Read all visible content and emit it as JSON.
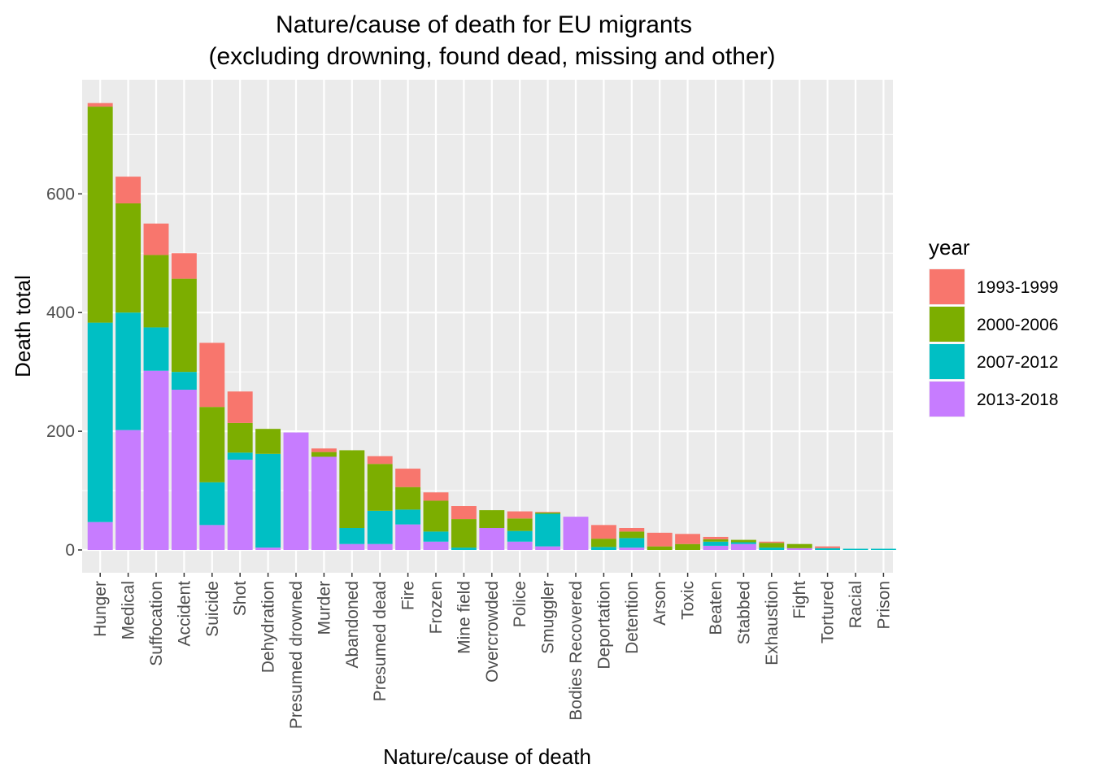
{
  "chart_data": {
    "type": "bar",
    "stacked": true,
    "title_lines": [
      "Nature/cause of death for EU migrants",
      "(excluding drowning, found dead, missing and other)"
    ],
    "xlabel": "Nature/cause of death",
    "ylabel": "Death total",
    "ylim": [
      -38,
      784
    ],
    "yticks": [
      0,
      200,
      400,
      600
    ],
    "grid": true,
    "legend_position": "right",
    "legend_title": "year",
    "categories": [
      "Hunger",
      "Medical",
      "Suffocation",
      "Accident",
      "Suicide",
      "Shot",
      "Dehydration",
      "Presumed drowned",
      "Murder",
      "Abandoned",
      "Presumed dead",
      "Fire",
      "Frozen",
      "Mine field",
      "Overcrowded",
      "Police",
      "Smuggler",
      "Bodies Recovered",
      "Deportation",
      "Detention",
      "Arson",
      "Toxic",
      "Beaten",
      "Stabbed",
      "Exhaustion",
      "Fight",
      "Tortured",
      "Racial",
      "Prison"
    ],
    "series": [
      {
        "name": "2013-2018",
        "color": "#C77CFF",
        "values": [
          47,
          202,
          302,
          270,
          42,
          152,
          4,
          198,
          157,
          10,
          10,
          43,
          14,
          0,
          37,
          14,
          6,
          56,
          0,
          4,
          0,
          0,
          7,
          10,
          0,
          3,
          0,
          0,
          0
        ]
      },
      {
        "name": "2007-2012",
        "color": "#00BFC4",
        "values": [
          336,
          198,
          73,
          30,
          72,
          12,
          158,
          0,
          0,
          27,
          56,
          25,
          17,
          4,
          0,
          18,
          55,
          0,
          5,
          16,
          0,
          0,
          7,
          3,
          4,
          0,
          3,
          2,
          2
        ]
      },
      {
        "name": "2000-2006",
        "color": "#7CAE00",
        "values": [
          364,
          184,
          122,
          157,
          127,
          50,
          42,
          0,
          8,
          131,
          79,
          38,
          52,
          48,
          30,
          21,
          2,
          0,
          14,
          11,
          6,
          10,
          4,
          4,
          8,
          7,
          0,
          0,
          0
        ]
      },
      {
        "name": "1993-1999",
        "color": "#F8766D",
        "values": [
          6,
          45,
          53,
          43,
          108,
          53,
          0,
          0,
          6,
          0,
          13,
          31,
          14,
          22,
          0,
          12,
          1,
          0,
          23,
          6,
          23,
          17,
          4,
          0,
          2,
          0,
          3,
          0,
          0
        ]
      }
    ],
    "legend_order": [
      "1993-1999",
      "2000-2006",
      "2007-2012",
      "2013-2018"
    ]
  }
}
